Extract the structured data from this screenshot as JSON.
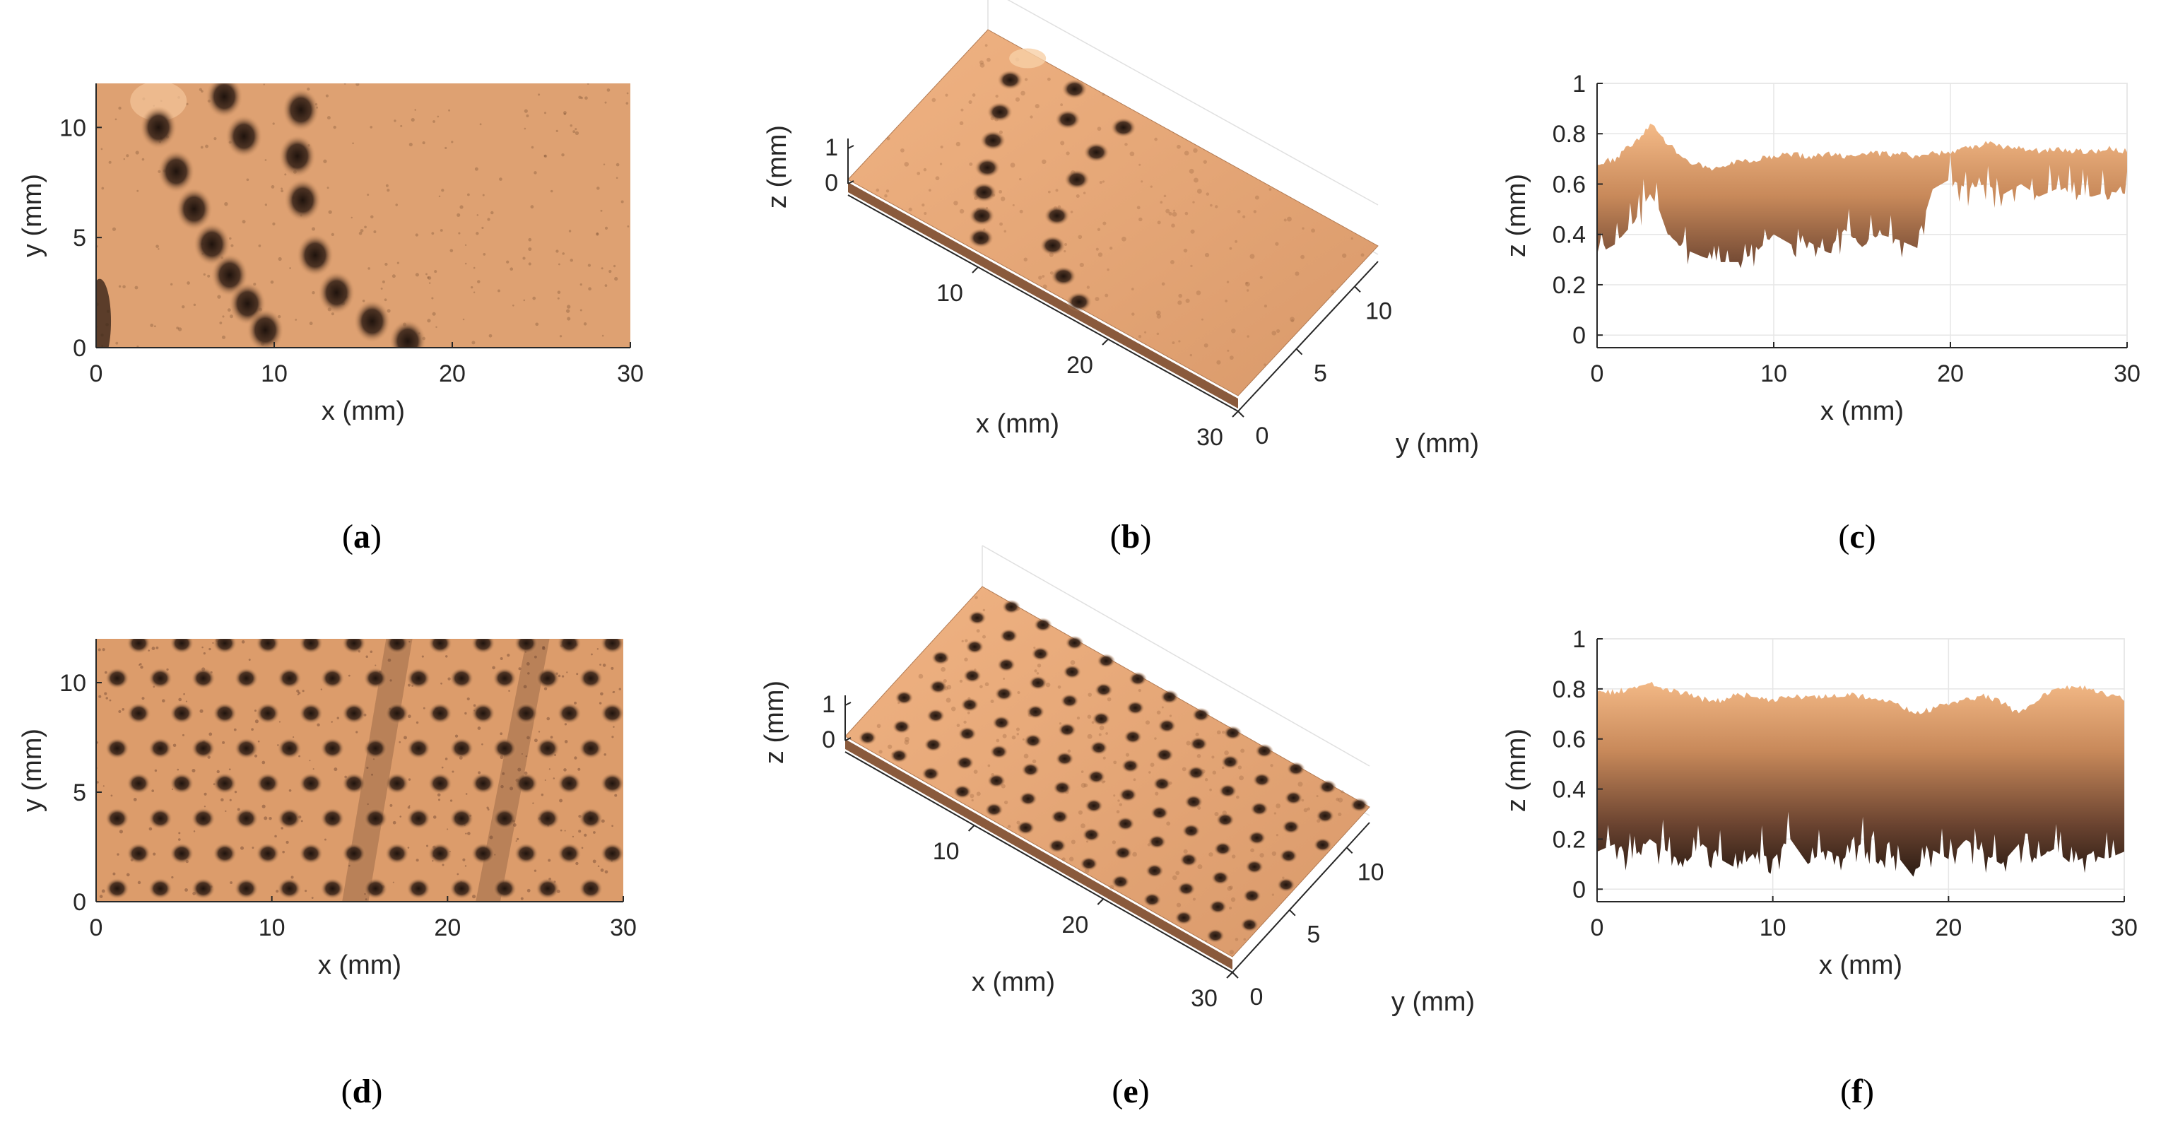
{
  "figure": {
    "panels": [
      {
        "id": "a",
        "label": "a"
      },
      {
        "id": "b",
        "label": "b"
      },
      {
        "id": "c",
        "label": "c"
      },
      {
        "id": "d",
        "label": "d"
      },
      {
        "id": "e",
        "label": "e"
      },
      {
        "id": "f",
        "label": "f"
      }
    ]
  },
  "colors": {
    "surface_light": "#f2b785",
    "surface_mid": "#d69765",
    "surface_dark": "#2a1a12",
    "axis": "#262626",
    "grid": "#e6e6e6"
  },
  "chart_data": [
    {
      "id": "a",
      "type": "heatmap",
      "title": "",
      "xlabel": "x (mm)",
      "ylabel": "y (mm)",
      "xlim": [
        0,
        30
      ],
      "ylim": [
        0,
        12
      ],
      "xticks": [
        0,
        10,
        20,
        30
      ],
      "yticks": [
        0,
        5,
        10
      ],
      "grid": false,
      "colormap": "copper",
      "dimple_tracks": [
        {
          "x": [
            3.5,
            4.5,
            5.5,
            6.5,
            7.5,
            8.5,
            9.5
          ],
          "y": [
            10,
            8,
            6.3,
            4.7,
            3.3,
            2,
            0.8
          ]
        },
        {
          "x": [
            7.2,
            8.3
          ],
          "y": [
            11.4,
            9.6
          ]
        },
        {
          "x": [
            11.5,
            11.3,
            11.6,
            12.3,
            13.5,
            15.5,
            17.5
          ],
          "y": [
            10.8,
            8.7,
            6.7,
            4.2,
            2.5,
            1.2,
            0.3
          ]
        }
      ]
    },
    {
      "id": "b",
      "type": "surface",
      "title": "",
      "xlabel": "x (mm)",
      "ylabel": "y (mm)",
      "zlabel": "z (mm)",
      "xlim": [
        0,
        30
      ],
      "ylim": [
        0,
        12
      ],
      "zlim": [
        0,
        1
      ],
      "xticks": [
        10,
        20,
        30
      ],
      "yticks": [
        0,
        5,
        10
      ],
      "zticks": [
        0,
        1
      ],
      "colormap": "copper"
    },
    {
      "id": "c",
      "type": "area",
      "title": "",
      "xlabel": "x (mm)",
      "ylabel": "z (mm)",
      "xlim": [
        0,
        30
      ],
      "ylim": [
        0,
        1
      ],
      "xticks": [
        0,
        10,
        20,
        30
      ],
      "yticks": [
        0,
        0.2,
        0.4,
        0.6,
        0.8,
        1
      ],
      "ytick_labels": [
        "0",
        "0.2",
        "0.4",
        "0.6",
        "0.8",
        "1"
      ],
      "grid": true,
      "colormap": "copper",
      "x": [
        0,
        1,
        2,
        3,
        3.5,
        4,
        5,
        6,
        7,
        8,
        9,
        10,
        11,
        12,
        13,
        14,
        15,
        16,
        17,
        18,
        19,
        20,
        21,
        22,
        23,
        24,
        25,
        26,
        27,
        28,
        29,
        30
      ],
      "upper": [
        0.68,
        0.7,
        0.76,
        0.83,
        0.81,
        0.76,
        0.7,
        0.67,
        0.66,
        0.69,
        0.7,
        0.71,
        0.72,
        0.71,
        0.72,
        0.71,
        0.73,
        0.72,
        0.72,
        0.71,
        0.72,
        0.73,
        0.74,
        0.76,
        0.75,
        0.74,
        0.73,
        0.74,
        0.73,
        0.73,
        0.74,
        0.73
      ],
      "lower": [
        0.32,
        0.36,
        0.44,
        0.56,
        0.5,
        0.4,
        0.34,
        0.31,
        0.29,
        0.29,
        0.33,
        0.4,
        0.36,
        0.37,
        0.33,
        0.42,
        0.35,
        0.4,
        0.38,
        0.35,
        0.58,
        0.62,
        0.58,
        0.6,
        0.56,
        0.6,
        0.55,
        0.58,
        0.56,
        0.55,
        0.57,
        0.56
      ]
    },
    {
      "id": "d",
      "type": "heatmap",
      "title": "",
      "xlabel": "x (mm)",
      "ylabel": "y (mm)",
      "xlim": [
        0,
        30
      ],
      "ylim": [
        0,
        12
      ],
      "xticks": [
        0,
        10,
        20,
        30
      ],
      "yticks": [
        0,
        5,
        10
      ],
      "grid": false,
      "colormap": "copper",
      "dimple_pitch_x_mm": 2.45,
      "dimple_pitch_y_mm": 1.6
    },
    {
      "id": "e",
      "type": "surface",
      "title": "",
      "xlabel": "x (mm)",
      "ylabel": "y (mm)",
      "zlabel": "z (mm)",
      "xlim": [
        0,
        30
      ],
      "ylim": [
        0,
        12
      ],
      "zlim": [
        0,
        1
      ],
      "xticks": [
        10,
        20,
        30
      ],
      "yticks": [
        0,
        5,
        10
      ],
      "zticks": [
        0,
        1
      ],
      "colormap": "copper"
    },
    {
      "id": "f",
      "type": "area",
      "title": "",
      "xlabel": "x (mm)",
      "ylabel": "z (mm)",
      "xlim": [
        0,
        30
      ],
      "ylim": [
        0,
        1
      ],
      "xticks": [
        0,
        10,
        20,
        30
      ],
      "yticks": [
        0,
        0.2,
        0.4,
        0.6,
        0.8,
        1
      ],
      "ytick_labels": [
        "0",
        "0.2",
        "0.4",
        "0.6",
        "0.8",
        "1"
      ],
      "grid": true,
      "colormap": "copper",
      "x": [
        0,
        1,
        2,
        3,
        4,
        5,
        6,
        7,
        8,
        9,
        10,
        11,
        12,
        13,
        14,
        15,
        16,
        17,
        18,
        19,
        20,
        21,
        22,
        23,
        24,
        25,
        26,
        27,
        28,
        29,
        30
      ],
      "upper": [
        0.78,
        0.79,
        0.8,
        0.82,
        0.8,
        0.78,
        0.76,
        0.75,
        0.78,
        0.77,
        0.75,
        0.77,
        0.76,
        0.77,
        0.78,
        0.77,
        0.76,
        0.75,
        0.7,
        0.72,
        0.74,
        0.76,
        0.77,
        0.75,
        0.7,
        0.75,
        0.8,
        0.81,
        0.8,
        0.78,
        0.76
      ],
      "lower": [
        0.15,
        0.18,
        0.12,
        0.2,
        0.15,
        0.1,
        0.18,
        0.12,
        0.08,
        0.15,
        0.12,
        0.2,
        0.1,
        0.16,
        0.12,
        0.18,
        0.1,
        0.14,
        0.05,
        0.16,
        0.12,
        0.2,
        0.14,
        0.1,
        0.18,
        0.12,
        0.16,
        0.1,
        0.14,
        0.12,
        0.15
      ]
    }
  ]
}
